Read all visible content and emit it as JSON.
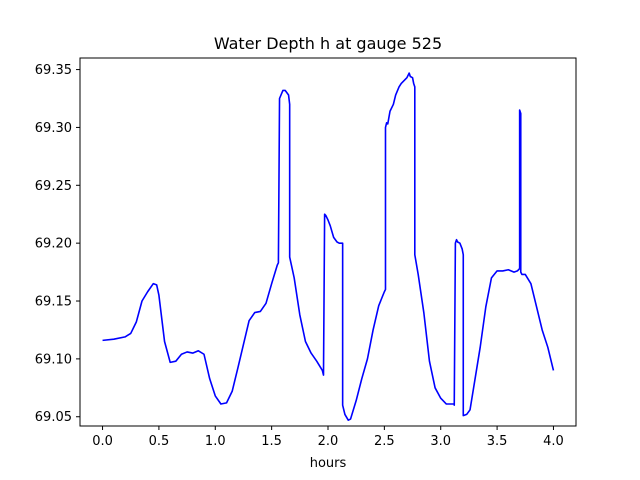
{
  "chart_data": {
    "type": "line",
    "title": "Water Depth h at gauge 525",
    "xlabel": "hours",
    "ylabel": "",
    "xlim": [
      -0.2,
      4.2
    ],
    "ylim": [
      69.042,
      69.36
    ],
    "x_ticks": [
      0.0,
      0.5,
      1.0,
      1.5,
      2.0,
      2.5,
      3.0,
      3.5,
      4.0
    ],
    "x_tick_labels": [
      "0.0",
      "0.5",
      "1.0",
      "1.5",
      "2.0",
      "2.5",
      "3.0",
      "3.5",
      "4.0"
    ],
    "y_ticks": [
      69.05,
      69.1,
      69.15,
      69.2,
      69.25,
      69.3,
      69.35
    ],
    "y_tick_labels": [
      "69.05",
      "69.10",
      "69.15",
      "69.20",
      "69.25",
      "69.30",
      "69.35"
    ],
    "grid": false,
    "series": [
      {
        "color": "#0000ff",
        "x": [
          0.0,
          0.1,
          0.2,
          0.25,
          0.3,
          0.35,
          0.4,
          0.45,
          0.48,
          0.5,
          0.55,
          0.6,
          0.65,
          0.7,
          0.75,
          0.8,
          0.85,
          0.9,
          0.95,
          1.0,
          1.05,
          1.1,
          1.15,
          1.2,
          1.3,
          1.35,
          1.4,
          1.45,
          1.5,
          1.55,
          1.56,
          1.57,
          1.6,
          1.62,
          1.65,
          1.66,
          1.66,
          1.7,
          1.75,
          1.8,
          1.85,
          1.9,
          1.95,
          1.96,
          1.97,
          1.98,
          2.0,
          2.02,
          2.05,
          2.08,
          2.1,
          2.13,
          2.13,
          2.15,
          2.18,
          2.2,
          2.25,
          2.3,
          2.35,
          2.4,
          2.45,
          2.5,
          2.51,
          2.51,
          2.52,
          2.53,
          2.55,
          2.58,
          2.6,
          2.63,
          2.65,
          2.7,
          2.72,
          2.73,
          2.75,
          2.76,
          2.77,
          2.77,
          2.8,
          2.85,
          2.9,
          2.95,
          3.0,
          3.05,
          3.1,
          3.12,
          3.12,
          3.13,
          3.14,
          3.15,
          3.17,
          3.19,
          3.2,
          3.2,
          3.23,
          3.26,
          3.3,
          3.35,
          3.4,
          3.45,
          3.5,
          3.55,
          3.6,
          3.65,
          3.68,
          3.7,
          3.7,
          3.71,
          3.71,
          3.72,
          3.75,
          3.8,
          3.85,
          3.9,
          3.95,
          4.0
        ],
        "y": [
          69.116,
          69.117,
          69.119,
          69.122,
          69.132,
          69.15,
          69.158,
          69.165,
          69.164,
          69.155,
          69.115,
          69.097,
          69.098,
          69.104,
          69.106,
          69.105,
          69.107,
          69.104,
          69.083,
          69.068,
          69.061,
          69.062,
          69.072,
          69.092,
          69.133,
          69.14,
          69.141,
          69.148,
          69.165,
          69.181,
          69.183,
          69.325,
          69.332,
          69.332,
          69.328,
          69.32,
          69.188,
          69.17,
          69.138,
          69.115,
          69.105,
          69.098,
          69.09,
          69.086,
          69.225,
          69.224,
          69.22,
          69.215,
          69.205,
          69.201,
          69.2,
          69.2,
          69.06,
          69.052,
          69.047,
          69.048,
          69.064,
          69.083,
          69.1,
          69.125,
          69.146,
          69.158,
          69.16,
          69.3,
          69.304,
          69.303,
          69.314,
          69.32,
          69.328,
          69.335,
          69.338,
          69.343,
          69.347,
          69.344,
          69.343,
          69.338,
          69.335,
          69.19,
          69.173,
          69.14,
          69.098,
          69.075,
          69.066,
          69.061,
          69.061,
          69.061,
          69.06,
          69.2,
          69.203,
          69.201,
          69.2,
          69.195,
          69.19,
          69.051,
          69.052,
          69.056,
          69.08,
          69.11,
          69.145,
          69.17,
          69.176,
          69.176,
          69.177,
          69.175,
          69.176,
          69.178,
          69.315,
          69.312,
          69.175,
          69.173,
          69.173,
          69.165,
          69.145,
          69.125,
          69.11,
          69.09
        ]
      }
    ]
  }
}
